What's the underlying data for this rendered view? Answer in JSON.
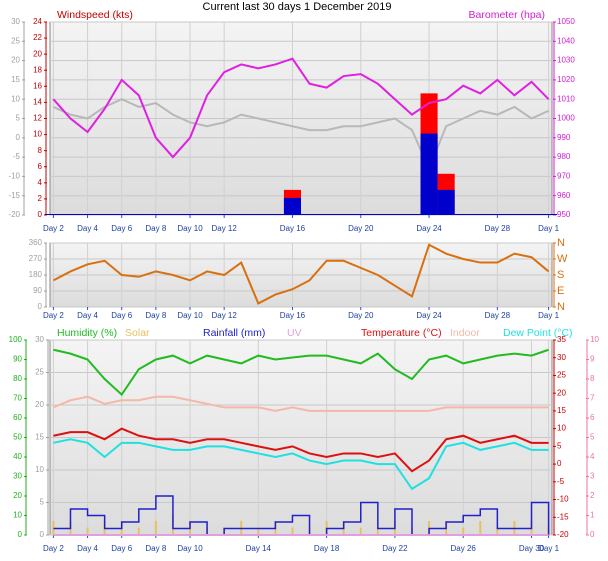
{
  "title": "Current last 30 days 1 December 2019",
  "chart_data": [
    {
      "type": "line",
      "x": [
        0,
        1,
        2,
        3,
        4,
        5,
        6,
        7,
        8,
        9,
        10,
        11,
        12,
        13,
        14,
        15,
        16,
        17,
        18,
        19,
        20,
        21,
        22,
        23,
        24,
        25,
        26,
        27,
        28,
        29
      ],
      "xlim": [
        -0.2,
        29.2
      ],
      "xticks": [
        {
          "value": 0,
          "label": "Day 2"
        },
        {
          "value": 2,
          "label": "Day 4"
        },
        {
          "value": 4,
          "label": "Day 6"
        },
        {
          "value": 6,
          "label": "Day 8"
        },
        {
          "value": 8,
          "label": "Day 10"
        },
        {
          "value": 10,
          "label": "Day 12"
        },
        {
          "value": 14,
          "label": "Day 16"
        },
        {
          "value": 18,
          "label": "Day 20"
        },
        {
          "value": 22,
          "label": "Day 24"
        },
        {
          "value": 26,
          "label": "Day 28"
        },
        {
          "value": 29,
          "label": "Day 1"
        }
      ],
      "axes": [
        {
          "ylim": [
            -20,
            30
          ],
          "yticks": [
            30,
            25,
            20,
            15,
            10,
            5,
            0,
            -5,
            -10,
            -15,
            -20
          ],
          "color": "#a0a0a0",
          "grid": true
        },
        {
          "label": "Windspeed (kts)",
          "ylim": [
            0,
            24
          ],
          "yticks": [
            24,
            22,
            20,
            18,
            16,
            14,
            12,
            10,
            8,
            6,
            4,
            2,
            0
          ],
          "color": "#c00000"
        },
        {
          "label": "Barometer (hpa)",
          "ylim": [
            950,
            1050
          ],
          "yticks": [
            1050,
            1040,
            1030,
            1020,
            1010,
            1000,
            990,
            980,
            970,
            960,
            950
          ],
          "color": "#d020d0"
        }
      ],
      "series": [
        {
          "color": "#b8b8b8",
          "axis": 0,
          "style": "line",
          "values": [
            8,
            6,
            5,
            8,
            10,
            8,
            9,
            6,
            4,
            3,
            4,
            6,
            5,
            4,
            3,
            2,
            2,
            3,
            3,
            4,
            5,
            2,
            -8,
            3,
            5,
            7,
            6,
            8,
            5,
            7
          ]
        },
        {
          "color": "#ff0000",
          "axis": 1,
          "style": "bars",
          "values": [
            0,
            0,
            0,
            0,
            0,
            0,
            0,
            0,
            0,
            0,
            0,
            0,
            0,
            0,
            3,
            0,
            0,
            0,
            0,
            0,
            0,
            0,
            15,
            5,
            0,
            0,
            0,
            0,
            0,
            0
          ]
        },
        {
          "color": "#0000cc",
          "axis": 1,
          "style": "bars",
          "values": [
            0,
            0,
            0,
            0,
            0,
            0,
            0,
            0,
            0,
            0,
            0,
            0,
            0,
            0,
            2,
            0,
            0,
            0,
            0,
            0,
            0,
            0,
            10,
            3,
            0,
            0,
            0,
            0,
            0,
            0
          ]
        },
        {
          "color": "#e020e0",
          "axis": 2,
          "style": "line",
          "values": [
            1010,
            1000,
            993,
            1005,
            1020,
            1012,
            990,
            980,
            990,
            1012,
            1024,
            1028,
            1026,
            1028,
            1031,
            1018,
            1016,
            1022,
            1023,
            1018,
            1010,
            1002,
            1008,
            1010,
            1017,
            1013,
            1020,
            1012,
            1019,
            1010
          ]
        }
      ]
    },
    {
      "type": "line",
      "x": [
        0,
        1,
        2,
        3,
        4,
        5,
        6,
        7,
        8,
        9,
        10,
        11,
        12,
        13,
        14,
        15,
        16,
        17,
        18,
        19,
        20,
        21,
        22,
        23,
        24,
        25,
        26,
        27,
        28,
        29
      ],
      "xlim": [
        -0.2,
        29.2
      ],
      "xticks": [
        {
          "value": 0,
          "label": "Day 2"
        },
        {
          "value": 2,
          "label": "Day 4"
        },
        {
          "value": 4,
          "label": "Day 6"
        },
        {
          "value": 6,
          "label": "Day 8"
        },
        {
          "value": 8,
          "label": "Day 10"
        },
        {
          "value": 10,
          "label": "Day 12"
        },
        {
          "value": 14,
          "label": "Day 16"
        },
        {
          "value": 18,
          "label": "Day 20"
        },
        {
          "value": 22,
          "label": "Day 24"
        },
        {
          "value": 26,
          "label": "Day 28"
        },
        {
          "value": 29,
          "label": "Day 1"
        }
      ],
      "axes": [
        {
          "ylim": [
            0,
            360
          ],
          "yticks": [
            360,
            270,
            180,
            90,
            0
          ],
          "color": "#a0a0a0",
          "grid": true
        },
        {
          "ylim": [
            0,
            360
          ],
          "yticks": [
            {
              "value": 360,
              "label": "N"
            },
            {
              "value": 270,
              "label": "W"
            },
            {
              "value": 180,
              "label": "S"
            },
            {
              "value": 90,
              "label": "E"
            },
            {
              "value": 0,
              "label": "N"
            }
          ],
          "color": "#d87010"
        }
      ],
      "series": [
        {
          "color": "#d87010",
          "axis": 0,
          "style": "line",
          "values": [
            150,
            200,
            240,
            260,
            180,
            170,
            200,
            180,
            150,
            200,
            180,
            250,
            20,
            70,
            100,
            150,
            260,
            260,
            220,
            180,
            120,
            60,
            350,
            300,
            270,
            250,
            250,
            300,
            280,
            200
          ]
        }
      ]
    },
    {
      "type": "line",
      "x": [
        0,
        1,
        2,
        3,
        4,
        5,
        6,
        7,
        8,
        9,
        10,
        11,
        12,
        13,
        14,
        15,
        16,
        17,
        18,
        19,
        20,
        21,
        22,
        23,
        24,
        25,
        26,
        27,
        28,
        29
      ],
      "xlim": [
        -0.2,
        29.2
      ],
      "xticks": [
        {
          "value": 0,
          "label": "Day 2"
        },
        {
          "value": 2,
          "label": "Day 4"
        },
        {
          "value": 4,
          "label": "Day 6"
        },
        {
          "value": 6,
          "label": "Day 8"
        },
        {
          "value": 8,
          "label": "Day 10"
        },
        {
          "value": 12,
          "label": "Day 14"
        },
        {
          "value": 16,
          "label": "Day 18"
        },
        {
          "value": 20,
          "label": "Day 22"
        },
        {
          "value": 24,
          "label": "Day 26"
        },
        {
          "value": 28,
          "label": "Day 30"
        },
        {
          "value": 29,
          "label": "Day 1"
        }
      ],
      "axes": [
        {
          "ylim": [
            0,
            100
          ],
          "yticks": [
            100,
            90,
            80,
            70,
            60,
            50,
            40,
            30,
            20,
            10,
            0
          ],
          "color": "#20b020"
        },
        {
          "ylim": [
            0,
            30
          ],
          "yticks": [
            30,
            25,
            20,
            15,
            10,
            5,
            0
          ],
          "color": "#a0a0a0",
          "grid": true
        },
        {
          "ylim": [
            -20,
            35
          ],
          "yticks": [
            35,
            30,
            25,
            20,
            15,
            10,
            5,
            0,
            -5,
            -10,
            -15,
            -20
          ],
          "color": "#c00000"
        },
        {
          "ylim": [
            0,
            10
          ],
          "yticks": [
            10,
            9,
            8,
            7,
            6,
            5,
            4,
            3,
            2,
            1,
            0
          ],
          "color": "#f070a0"
        }
      ],
      "series": [
        {
          "name": "Humidity (%)",
          "color": "#22bb22",
          "axis": 0,
          "style": "line",
          "values": [
            95,
            93,
            90,
            80,
            72,
            85,
            90,
            92,
            88,
            92,
            90,
            88,
            92,
            90,
            91,
            92,
            92,
            90,
            88,
            93,
            85,
            80,
            90,
            92,
            88,
            90,
            92,
            93,
            92,
            95
          ]
        },
        {
          "name": "Solar",
          "color": "#e8c060",
          "axis": 1,
          "style": "bars",
          "values": [
            2,
            2,
            1,
            2,
            2,
            1,
            2,
            3,
            2,
            1,
            1,
            2,
            1,
            2,
            1,
            1,
            2,
            2,
            1,
            1,
            2,
            1,
            2,
            2,
            1,
            2,
            1,
            2,
            2,
            1
          ]
        },
        {
          "name": "Rainfall (mm)",
          "color": "#2020cc",
          "axis": 1,
          "style": "step",
          "values": [
            1,
            4,
            3,
            1,
            2,
            4,
            6,
            1,
            2,
            0,
            1,
            1,
            1,
            2,
            3,
            0,
            1,
            2,
            5,
            1,
            4,
            0,
            1,
            2,
            3,
            4,
            1,
            1,
            5,
            0
          ]
        },
        {
          "name": "UV",
          "color": "#e0a0e0",
          "axis": 3,
          "style": "line",
          "values": [
            0,
            0,
            0,
            0,
            0,
            0,
            0,
            0,
            0,
            0,
            0,
            0,
            0,
            0,
            0,
            0,
            0,
            0,
            0,
            0,
            0,
            0,
            0,
            0,
            0,
            0,
            0,
            0,
            0,
            0
          ]
        },
        {
          "name": "Temperature (°C)",
          "color": "#dd1010",
          "axis": 2,
          "style": "line",
          "values": [
            8,
            9,
            9,
            7,
            10,
            8,
            7,
            7,
            6,
            7,
            7,
            6,
            5,
            4,
            5,
            3,
            2,
            3,
            3,
            2,
            3,
            -2,
            1,
            7,
            8,
            6,
            7,
            8,
            6,
            6
          ]
        },
        {
          "name": "Indoor",
          "color": "#f4b8a8",
          "axis": 2,
          "style": "line",
          "values": [
            16,
            18,
            19,
            17,
            18,
            18,
            19,
            19,
            18,
            17,
            16,
            16,
            16,
            15,
            16,
            15,
            15,
            15,
            15,
            15,
            15,
            15,
            15,
            16,
            16,
            16,
            16,
            16,
            16,
            16
          ]
        },
        {
          "name": "Dew Point (°C)",
          "color": "#20e0e0",
          "axis": 2,
          "style": "line",
          "values": [
            6,
            7,
            6,
            2,
            6,
            6,
            5,
            4,
            4,
            5,
            5,
            4,
            3,
            2,
            3,
            1,
            0,
            1,
            1,
            0,
            0,
            -7,
            -4,
            5,
            6,
            4,
            5,
            6,
            4,
            4
          ]
        }
      ]
    }
  ]
}
